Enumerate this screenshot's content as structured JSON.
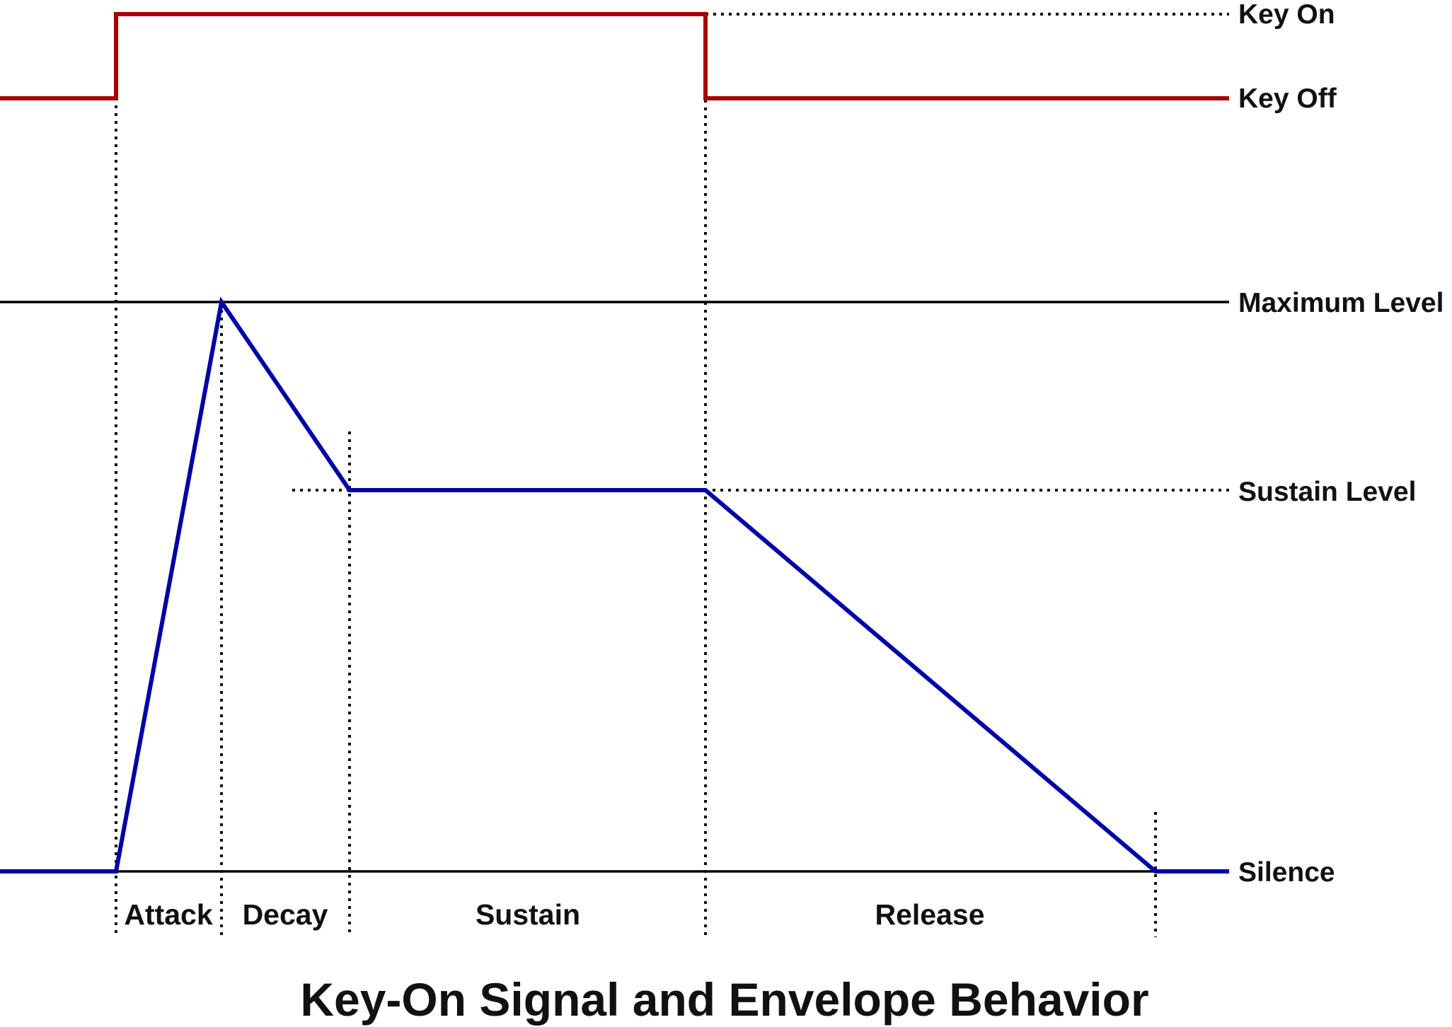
{
  "title": "Key-On Signal and Envelope Behavior",
  "levels": {
    "key_on": "Key On",
    "key_off": "Key Off",
    "maximum": "Maximum Level",
    "sustain": "Sustain Level",
    "silence": "Silence"
  },
  "phases": {
    "attack": "Attack",
    "decay": "Decay",
    "sustain": "Sustain",
    "release": "Release"
  },
  "colors": {
    "key_signal": "#aa0000",
    "envelope": "#0000aa",
    "reference": "#000000",
    "guide": "#111111"
  }
}
